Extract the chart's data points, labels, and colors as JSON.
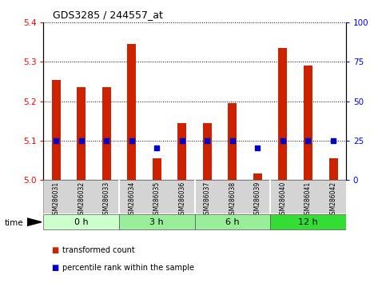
{
  "title": "GDS3285 / 244557_at",
  "samples": [
    "GSM286031",
    "GSM286032",
    "GSM286033",
    "GSM286034",
    "GSM286035",
    "GSM286036",
    "GSM286037",
    "GSM286038",
    "GSM286039",
    "GSM286040",
    "GSM286041",
    "GSM286042"
  ],
  "transformed_count": [
    5.255,
    5.235,
    5.235,
    5.345,
    5.055,
    5.145,
    5.145,
    5.195,
    5.015,
    5.335,
    5.29,
    5.055
  ],
  "percentile_rank": [
    25,
    25,
    25,
    25,
    20,
    25,
    25,
    25,
    20,
    25,
    25,
    25
  ],
  "ylim_left": [
    5.0,
    5.4
  ],
  "ylim_right": [
    0,
    100
  ],
  "yticks_left": [
    5.0,
    5.1,
    5.2,
    5.3,
    5.4
  ],
  "yticks_right": [
    0,
    25,
    50,
    75,
    100
  ],
  "bar_color": "#cc2200",
  "dot_color": "#0000cc",
  "bar_width": 0.35,
  "dot_size": 25,
  "group_colors": [
    "#ccffcc",
    "#99ee99",
    "#99ee99",
    "#33dd33"
  ],
  "groups_def": [
    [
      0,
      2,
      "0 h"
    ],
    [
      3,
      5,
      "3 h"
    ],
    [
      6,
      8,
      "6 h"
    ],
    [
      9,
      11,
      "12 h"
    ]
  ]
}
